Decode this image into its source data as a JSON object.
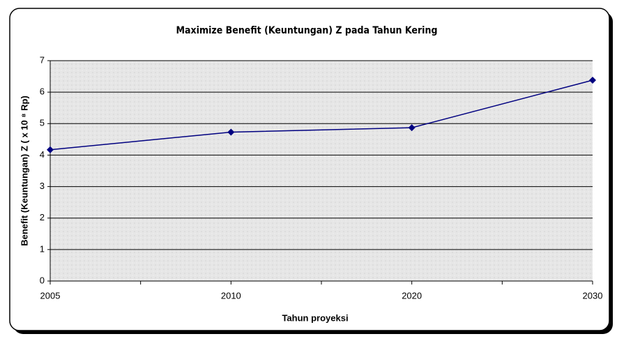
{
  "chart_data": {
    "type": "line",
    "title": "Maximize Benefit (Keuntungan) Z pada Tahun Kering",
    "x_label": "Tahun proyeksi",
    "y_label": "Benefit (Keuntungan) Z ( x 10 ⁸ Rp)",
    "categories": [
      "2005",
      "2010",
      "2020",
      "2030"
    ],
    "series": [
      {
        "name": "Benefit",
        "color": "#000080",
        "values": [
          4.17,
          4.73,
          4.87,
          6.38
        ]
      }
    ],
    "ylim": [
      0,
      7
    ],
    "yticks": [
      0,
      1,
      2,
      3,
      4,
      5,
      6,
      7
    ],
    "grid": true
  }
}
